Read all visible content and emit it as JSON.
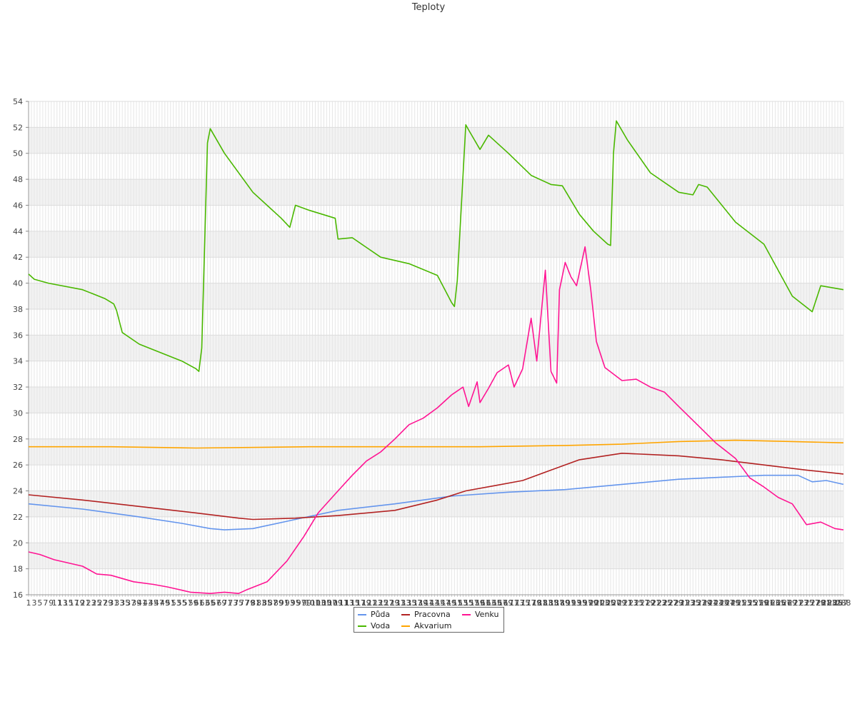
{
  "chart_data": {
    "type": "line",
    "title": "Teploty",
    "xlabel": "",
    "ylabel": "",
    "ylim": [
      16,
      54
    ],
    "yticks": [
      16,
      18,
      20,
      22,
      24,
      26,
      28,
      30,
      32,
      34,
      36,
      38,
      40,
      42,
      44,
      46,
      48,
      50,
      52,
      54
    ],
    "x_range": [
      1,
      288
    ],
    "grid": true,
    "legend_position": "bottom-center",
    "series": [
      {
        "name": "Půda",
        "color": "#6495ed",
        "points": [
          [
            1,
            23.0
          ],
          [
            20,
            22.6
          ],
          [
            40,
            22.0
          ],
          [
            55,
            21.5
          ],
          [
            65,
            21.1
          ],
          [
            70,
            21.0
          ],
          [
            80,
            21.1
          ],
          [
            95,
            21.8
          ],
          [
            110,
            22.5
          ],
          [
            130,
            23.0
          ],
          [
            150,
            23.6
          ],
          [
            170,
            23.9
          ],
          [
            190,
            24.1
          ],
          [
            210,
            24.5
          ],
          [
            230,
            24.9
          ],
          [
            250,
            25.1
          ],
          [
            260,
            25.2
          ],
          [
            272,
            25.2
          ],
          [
            277,
            24.7
          ],
          [
            282,
            24.8
          ],
          [
            288,
            24.5
          ]
        ]
      },
      {
        "name": "Voda",
        "color": "#4ab800",
        "points": [
          [
            1,
            40.7
          ],
          [
            3,
            40.3
          ],
          [
            8,
            40.0
          ],
          [
            20,
            39.5
          ],
          [
            28,
            38.8
          ],
          [
            31,
            38.4
          ],
          [
            32,
            37.9
          ],
          [
            34,
            36.2
          ],
          [
            40,
            35.3
          ],
          [
            55,
            34.0
          ],
          [
            60,
            33.4
          ],
          [
            61,
            33.2
          ],
          [
            62,
            35.0
          ],
          [
            64,
            50.8
          ],
          [
            65,
            51.9
          ],
          [
            70,
            50.0
          ],
          [
            80,
            47.0
          ],
          [
            90,
            45.0
          ],
          [
            93,
            44.3
          ],
          [
            95,
            46.0
          ],
          [
            100,
            45.6
          ],
          [
            109,
            45.0
          ],
          [
            110,
            43.4
          ],
          [
            115,
            43.5
          ],
          [
            125,
            42.0
          ],
          [
            135,
            41.5
          ],
          [
            145,
            40.6
          ],
          [
            150,
            38.5
          ],
          [
            151,
            38.2
          ],
          [
            152,
            40.2
          ],
          [
            155,
            52.2
          ],
          [
            156,
            51.8
          ],
          [
            160,
            50.3
          ],
          [
            163,
            51.4
          ],
          [
            170,
            50.0
          ],
          [
            178,
            48.3
          ],
          [
            185,
            47.6
          ],
          [
            189,
            47.5
          ],
          [
            195,
            45.3
          ],
          [
            200,
            44.0
          ],
          [
            205,
            43.0
          ],
          [
            206,
            42.9
          ],
          [
            207,
            50.0
          ],
          [
            208,
            52.5
          ],
          [
            212,
            51.0
          ],
          [
            220,
            48.5
          ],
          [
            230,
            47.0
          ],
          [
            235,
            46.8
          ],
          [
            237,
            47.6
          ],
          [
            240,
            47.4
          ],
          [
            250,
            44.7
          ],
          [
            260,
            43.0
          ],
          [
            270,
            39.0
          ],
          [
            277,
            37.8
          ],
          [
            280,
            39.8
          ],
          [
            288,
            39.5
          ]
        ]
      },
      {
        "name": "Pracovna",
        "color": "#b22222",
        "points": [
          [
            1,
            23.7
          ],
          [
            20,
            23.3
          ],
          [
            40,
            22.8
          ],
          [
            60,
            22.3
          ],
          [
            75,
            21.9
          ],
          [
            80,
            21.8
          ],
          [
            95,
            21.9
          ],
          [
            110,
            22.1
          ],
          [
            130,
            22.5
          ],
          [
            145,
            23.3
          ],
          [
            155,
            24.0
          ],
          [
            165,
            24.4
          ],
          [
            175,
            24.8
          ],
          [
            185,
            25.6
          ],
          [
            195,
            26.4
          ],
          [
            210,
            26.9
          ],
          [
            230,
            26.7
          ],
          [
            245,
            26.4
          ],
          [
            260,
            26.0
          ],
          [
            275,
            25.6
          ],
          [
            288,
            25.3
          ]
        ]
      },
      {
        "name": "Akvarium",
        "color": "#ffa500",
        "points": [
          [
            1,
            27.4
          ],
          [
            30,
            27.4
          ],
          [
            60,
            27.3
          ],
          [
            100,
            27.4
          ],
          [
            130,
            27.4
          ],
          [
            160,
            27.4
          ],
          [
            190,
            27.5
          ],
          [
            210,
            27.6
          ],
          [
            230,
            27.8
          ],
          [
            250,
            27.9
          ],
          [
            270,
            27.8
          ],
          [
            288,
            27.7
          ]
        ]
      },
      {
        "name": "Venku",
        "color": "#ff1493",
        "points": [
          [
            1,
            19.3
          ],
          [
            5,
            19.1
          ],
          [
            10,
            18.7
          ],
          [
            20,
            18.2
          ],
          [
            25,
            17.6
          ],
          [
            30,
            17.5
          ],
          [
            38,
            17.0
          ],
          [
            45,
            16.8
          ],
          [
            50,
            16.6
          ],
          [
            58,
            16.2
          ],
          [
            65,
            16.1
          ],
          [
            70,
            16.2
          ],
          [
            75,
            16.1
          ],
          [
            78,
            16.4
          ],
          [
            85,
            17.0
          ],
          [
            92,
            18.6
          ],
          [
            98,
            20.5
          ],
          [
            103,
            22.3
          ],
          [
            110,
            24.0
          ],
          [
            115,
            25.2
          ],
          [
            120,
            26.3
          ],
          [
            125,
            27.0
          ],
          [
            130,
            28.0
          ],
          [
            135,
            29.1
          ],
          [
            140,
            29.6
          ],
          [
            145,
            30.4
          ],
          [
            150,
            31.4
          ],
          [
            154,
            32.0
          ],
          [
            156,
            30.5
          ],
          [
            159,
            32.4
          ],
          [
            160,
            30.8
          ],
          [
            163,
            31.9
          ],
          [
            166,
            33.1
          ],
          [
            170,
            33.7
          ],
          [
            172,
            32.0
          ],
          [
            175,
            33.4
          ],
          [
            178,
            37.3
          ],
          [
            180,
            34.0
          ],
          [
            183,
            41.0
          ],
          [
            185,
            33.2
          ],
          [
            187,
            32.3
          ],
          [
            188,
            39.5
          ],
          [
            190,
            41.6
          ],
          [
            192,
            40.5
          ],
          [
            194,
            39.8
          ],
          [
            197,
            42.8
          ],
          [
            199,
            39.5
          ],
          [
            201,
            35.5
          ],
          [
            204,
            33.5
          ],
          [
            210,
            32.5
          ],
          [
            215,
            32.6
          ],
          [
            220,
            32.0
          ],
          [
            225,
            31.6
          ],
          [
            230,
            30.5
          ],
          [
            237,
            29.0
          ],
          [
            243,
            27.7
          ],
          [
            250,
            26.5
          ],
          [
            255,
            25.0
          ],
          [
            260,
            24.3
          ],
          [
            265,
            23.5
          ],
          [
            270,
            23.0
          ],
          [
            275,
            21.4
          ],
          [
            280,
            21.6
          ],
          [
            285,
            21.1
          ],
          [
            288,
            21.0
          ]
        ]
      }
    ]
  },
  "legend": {
    "items": [
      {
        "label": "Půda",
        "color": "#6495ed"
      },
      {
        "label": "Voda",
        "color": "#4ab800"
      },
      {
        "label": "Pracovna",
        "color": "#b22222"
      },
      {
        "label": "Akvarium",
        "color": "#ffa500"
      },
      {
        "label": "Venku",
        "color": "#ff1493"
      }
    ]
  }
}
